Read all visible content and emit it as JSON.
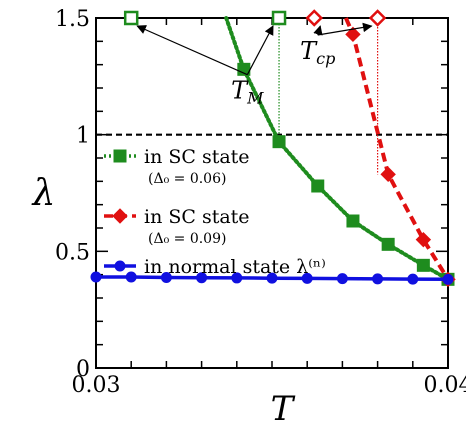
{
  "chart_data": {
    "type": "line",
    "xlabel": "T",
    "ylabel": "λ",
    "xlim": [
      0.03,
      0.04
    ],
    "ylim": [
      0,
      1.5
    ],
    "x_ticks": [
      "0.03",
      "0.04"
    ],
    "y_ticks": [
      "0",
      "0.5",
      "1",
      "1.5"
    ],
    "reference_line": {
      "y": 1.0,
      "style": "dashed",
      "color": "#000000"
    },
    "series": [
      {
        "name": "in SC state",
        "name_sub": "(Δ₀ = 0.06)",
        "color": "#1e8c1e",
        "marker": "square",
        "line": "dotted",
        "points": [
          {
            "x": 0.0342,
            "y": 1.28
          },
          {
            "x": 0.0352,
            "y": 0.97
          },
          {
            "x": 0.0363,
            "y": 0.78
          },
          {
            "x": 0.0373,
            "y": 0.63
          },
          {
            "x": 0.0383,
            "y": 0.53
          },
          {
            "x": 0.0393,
            "y": 0.44
          },
          {
            "x": 0.04,
            "y": 0.38
          }
        ],
        "curve_top": {
          "x": 0.0337,
          "y": 1.5
        }
      },
      {
        "name": "in SC state",
        "name_sub": "(Δ₀ = 0.09)",
        "color": "#e01010",
        "marker": "diamond",
        "line": "dashed",
        "points": [
          {
            "x": 0.0373,
            "y": 1.43
          },
          {
            "x": 0.0383,
            "y": 0.83
          },
          {
            "x": 0.0393,
            "y": 0.55
          },
          {
            "x": 0.04,
            "y": 0.38
          }
        ],
        "curve_top": {
          "x": 0.0371,
          "y": 1.5
        }
      },
      {
        "name": "in normal state λ⁽ⁿ⁾",
        "color": "#1010e0",
        "marker": "circle",
        "line": "solid",
        "points": [
          {
            "x": 0.03,
            "y": 0.39
          },
          {
            "x": 0.031,
            "y": 0.39
          },
          {
            "x": 0.032,
            "y": 0.388
          },
          {
            "x": 0.033,
            "y": 0.387
          },
          {
            "x": 0.034,
            "y": 0.386
          },
          {
            "x": 0.035,
            "y": 0.385
          },
          {
            "x": 0.036,
            "y": 0.384
          },
          {
            "x": 0.037,
            "y": 0.383
          },
          {
            "x": 0.038,
            "y": 0.382
          },
          {
            "x": 0.039,
            "y": 0.381
          },
          {
            "x": 0.04,
            "y": 0.38
          }
        ]
      }
    ],
    "open_markers": [
      {
        "x": 0.031,
        "y": 1.5,
        "marker": "square",
        "color": "#1e8c1e"
      },
      {
        "x": 0.0352,
        "y": 1.5,
        "marker": "square",
        "color": "#1e8c1e"
      },
      {
        "x": 0.0362,
        "y": 1.5,
        "marker": "diamond",
        "color": "#e01010"
      },
      {
        "x": 0.038,
        "y": 1.5,
        "marker": "diamond",
        "color": "#e01010"
      }
    ],
    "drop_lines": [
      {
        "x": 0.0352,
        "y_from": 1.5,
        "y_to": 0.97,
        "color": "#1e8c1e"
      },
      {
        "x": 0.038,
        "y_from": 1.5,
        "y_to": 0.83,
        "color": "#e01010"
      }
    ],
    "annotations": [
      {
        "text": "T",
        "sub": "M",
        "at": {
          "x": 0.0343,
          "y": 1.18
        },
        "arrows_to": [
          {
            "x": 0.031,
            "y": 1.5
          },
          {
            "x": 0.0352,
            "y": 1.5
          }
        ]
      },
      {
        "text": "T",
        "sub": "cp",
        "at": {
          "x": 0.0363,
          "y": 1.35
        },
        "arrows_to": [
          {
            "x": 0.0362,
            "y": 1.5
          },
          {
            "x": 0.038,
            "y": 1.5
          }
        ]
      }
    ]
  }
}
